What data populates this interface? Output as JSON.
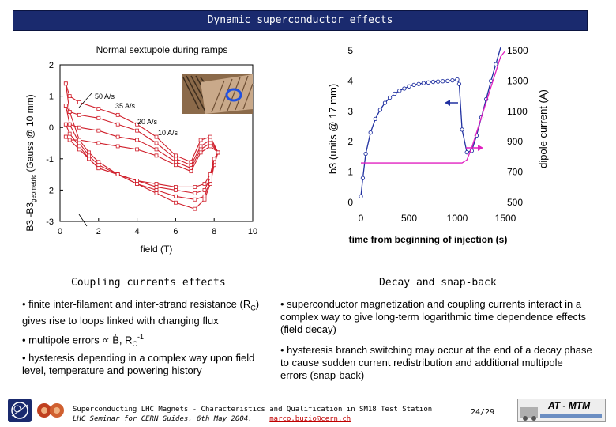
{
  "slide": {
    "title": "Dynamic superconductor effects",
    "page_number": "24/29",
    "colors": {
      "title_bg": "#1a2a6e",
      "red": "#d0202c",
      "blue": "#2030a0",
      "magenta": "#e020c0"
    }
  },
  "left_panel": {
    "caption": "Coupling currents effects",
    "bullets": [
      "• finite inter-filament and inter-strand resistance (R",
      "• multipole errors ∝ Ḃ, R",
      "• hysteresis depending in a complex way upon field level, temperature and powering history"
    ],
    "bullet1_sub": "C",
    "bullet1_tail": ") gives rise to loops linked with changing flux",
    "bullet2_sub": "C",
    "bullet2_tail": "-1"
  },
  "right_panel": {
    "caption": "Decay and snap-back",
    "bullets": [
      "• superconductor magnetization and coupling currents interact in a complex way to give long-term logarithmic time dependence effects (field decay)",
      "• hysteresis branch switching may occur at the end of a decay phase to cause sudden current redistribution and additional multipole errors (snap-back)"
    ]
  },
  "chart_data": [
    {
      "type": "line",
      "title": "Normal sextupole during ramps",
      "xlabel": "field (T)",
      "ylabel": "B3 -B3geometric (Gauss @ 10 mm)",
      "ylabel_main": "B3 -B3",
      "ylabel_sub": "geometric",
      "ylabel_tail": " (Gauss @ 10 mm)",
      "xlim": [
        0,
        10
      ],
      "ylim": [
        -3,
        2
      ],
      "x_ticks": [
        "0",
        "2",
        "4",
        "6",
        "8",
        "10"
      ],
      "y_ticks": [
        "2",
        "1",
        "0",
        "-1",
        "-2",
        "-3"
      ],
      "annotations": [
        "50 A/s",
        "35 A/s",
        "20 A/s",
        "10 A/s"
      ],
      "series": [
        {
          "x": [
            0.3,
            0.5,
            1,
            1.5,
            2,
            3,
            4,
            5,
            6,
            7,
            7.5,
            7.8,
            8,
            8.2
          ],
          "values": [
            1.4,
            0.5,
            -0.4,
            -0.8,
            -1.1,
            -1.5,
            -1.8,
            -2.1,
            -2.4,
            -2.6,
            -2.3,
            -1.8,
            -1.2,
            -0.8
          ]
        },
        {
          "x": [
            8.2,
            7.8,
            7.3,
            6.8,
            6,
            5,
            4,
            3,
            2,
            1,
            0.5,
            0.3
          ],
          "values": [
            -0.8,
            -0.3,
            -0.4,
            -1.1,
            -0.9,
            -0.3,
            0.1,
            0.4,
            0.6,
            0.8,
            1.0,
            1.4
          ]
        },
        {
          "x": [
            0.3,
            0.5,
            1,
            1.5,
            2,
            3,
            4,
            5,
            6,
            7,
            7.5,
            7.8,
            8,
            8.2
          ],
          "values": [
            0.7,
            0.1,
            -0.5,
            -0.9,
            -1.2,
            -1.5,
            -1.8,
            -2.0,
            -2.2,
            -2.3,
            -2.2,
            -1.7,
            -1.1,
            -0.8
          ]
        },
        {
          "x": [
            8.2,
            7.8,
            7.3,
            6.8,
            6,
            5,
            4,
            3,
            2,
            1,
            0.5,
            0.3
          ],
          "values": [
            -0.8,
            -0.4,
            -0.6,
            -1.2,
            -1.0,
            -0.5,
            -0.1,
            0.1,
            0.3,
            0.4,
            0.5,
            0.7
          ]
        },
        {
          "x": [
            0.3,
            0.5,
            1,
            1.5,
            2,
            3,
            4,
            5,
            6,
            7,
            7.5,
            7.8,
            8,
            8.2
          ],
          "values": [
            0.1,
            -0.2,
            -0.6,
            -1.0,
            -1.3,
            -1.5,
            -1.7,
            -1.9,
            -2.0,
            -2.1,
            -2.0,
            -1.6,
            -1.0,
            -0.8
          ]
        },
        {
          "x": [
            8.2,
            7.8,
            7.3,
            6.8,
            6,
            5,
            4,
            3,
            2,
            1,
            0.5,
            0.3
          ],
          "values": [
            -0.8,
            -0.5,
            -0.7,
            -1.3,
            -1.1,
            -0.7,
            -0.4,
            -0.3,
            -0.1,
            0.0,
            0.1,
            0.1
          ]
        },
        {
          "x": [
            0.3,
            0.5,
            1,
            1.5,
            2,
            3,
            4,
            5,
            6,
            7,
            7.5,
            7.8,
            8,
            8.2
          ],
          "values": [
            -0.3,
            -0.4,
            -0.7,
            -1.0,
            -1.3,
            -1.5,
            -1.7,
            -1.8,
            -1.9,
            -1.9,
            -1.8,
            -1.5,
            -1.0,
            -0.8
          ]
        },
        {
          "x": [
            8.2,
            7.8,
            7.3,
            6.8,
            6,
            5,
            4,
            3,
            2,
            1,
            0.5,
            0.3
          ],
          "values": [
            -0.8,
            -0.6,
            -0.8,
            -1.4,
            -1.2,
            -0.9,
            -0.7,
            -0.6,
            -0.5,
            -0.4,
            -0.4,
            -0.3
          ]
        }
      ]
    },
    {
      "type": "line",
      "xlabel": "time from beginning of injection (s)",
      "ylabel": "b3 (units @ 17 mm)",
      "ylabel_right": "dipole current (A)",
      "xlim": [
        0,
        1500
      ],
      "ylim": [
        0,
        5
      ],
      "ylim_right": [
        500,
        1500
      ],
      "x_ticks": [
        "0",
        "500",
        "1000",
        "1500"
      ],
      "y_ticks": [
        "5",
        "4",
        "3",
        "2",
        "1",
        "0"
      ],
      "y2_ticks": [
        "1500",
        "1300",
        "1100",
        "900",
        "700",
        "500"
      ],
      "series": [
        {
          "axis": "left",
          "x": [
            0,
            20,
            50,
            100,
            150,
            200,
            250,
            300,
            350,
            400,
            450,
            500,
            550,
            600,
            650,
            700,
            750,
            800,
            850,
            900,
            950,
            1000,
            1020,
            1050,
            1100,
            1150,
            1200,
            1250,
            1300,
            1350,
            1400,
            1450
          ],
          "values": [
            0.2,
            0.8,
            1.6,
            2.3,
            2.75,
            3.05,
            3.28,
            3.45,
            3.58,
            3.68,
            3.75,
            3.82,
            3.87,
            3.9,
            3.93,
            3.95,
            3.97,
            3.98,
            3.99,
            4.0,
            4.02,
            4.05,
            3.9,
            2.4,
            1.65,
            1.7,
            2.2,
            2.8,
            3.4,
            4.0,
            4.55,
            5.1
          ]
        },
        {
          "axis": "right",
          "x": [
            0,
            100,
            200,
            300,
            400,
            500,
            600,
            700,
            800,
            900,
            1000,
            1050,
            1100,
            1150,
            1200,
            1250,
            1300,
            1350,
            1400,
            1450,
            1500
          ],
          "values": [
            760,
            760,
            760,
            760,
            760,
            760,
            760,
            760,
            760,
            760,
            760,
            760,
            780,
            860,
            960,
            1060,
            1160,
            1260,
            1360,
            1460,
            1500
          ]
        }
      ]
    }
  ],
  "footer": {
    "line1": "Superconducting LHC Magnets - Characteristics and Qualification in SM18 Test Station",
    "line2": "LHC Seminar for CERN Guides, 6th May 2004,",
    "email": "marco.buzio@cern.ch",
    "at_logo": "AT - MTM"
  }
}
